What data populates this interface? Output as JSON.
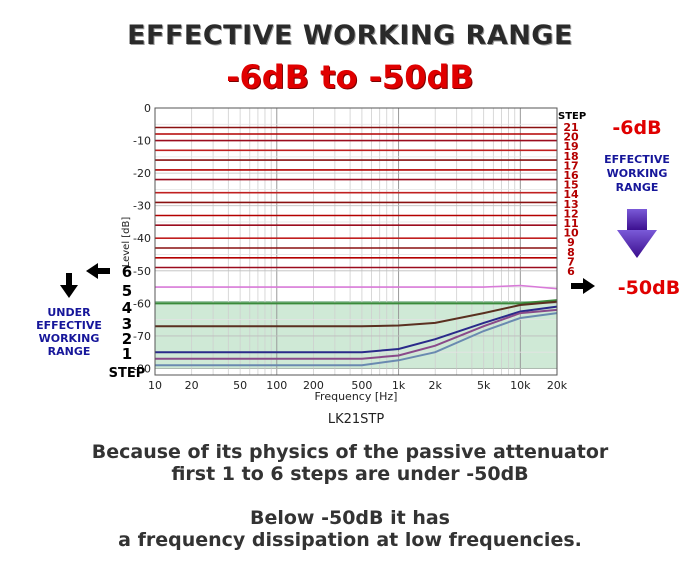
{
  "header": {
    "title": "EFFECTIVE WORKING RANGE",
    "subtitle": "-6dB to -50dB"
  },
  "annotations": {
    "right_top": "-6dB",
    "right_bottom": "-50dB",
    "effective_label": [
      "EFFECTIVE",
      "WORKING",
      "RANGE"
    ],
    "under_label": [
      "UNDER",
      "EFFECTIVE",
      "WORKING",
      "RANGE"
    ],
    "step_heading_top": "STEP",
    "step_heading_bottom": "STEP"
  },
  "colors": {
    "effective_steps": "#b40000",
    "effective_arrow": "#3a0c8c",
    "under_label": "#16169a",
    "red_text": "#e00000",
    "green_fill": "#cfe9d6"
  },
  "caption": {
    "line1": "Because of its physics of the passive attenuator",
    "line2": "first 1 to 6 steps are under -50dB",
    "line3": "Below -50dB it has",
    "line4": "a frequency dissipation at low frequencies."
  },
  "chart_data": {
    "type": "line",
    "title": "LK21STP",
    "xlabel": "Frequency [Hz]",
    "ylabel": "Level [dB]",
    "xscale": "log",
    "xlim": [
      10,
      20000
    ],
    "ylim": [
      -82,
      0
    ],
    "x_ticks": [
      10,
      20,
      50,
      100,
      200,
      500,
      1000,
      2000,
      5000,
      10000,
      20000
    ],
    "x_tick_labels": [
      "10",
      "20",
      "50",
      "100",
      "200",
      "500",
      "1k",
      "2k",
      "5k",
      "10k",
      "20k"
    ],
    "y_ticks": [
      0,
      -10,
      -20,
      -30,
      -40,
      -50,
      -60,
      -70,
      -80
    ],
    "y_tick_labels": [
      "0",
      "-10",
      "-20",
      "-30",
      "-40",
      "-50",
      "-60",
      "-70",
      "-80"
    ],
    "grid": true,
    "x": [
      10,
      20,
      50,
      100,
      200,
      500,
      1000,
      2000,
      5000,
      10000,
      20000
    ],
    "series": [
      {
        "name": "21",
        "values": [
          -6,
          -6,
          -6,
          -6,
          -6,
          -6,
          -6,
          -6,
          -6,
          -6,
          -6
        ]
      },
      {
        "name": "20",
        "values": [
          -8,
          -8,
          -8,
          -8,
          -8,
          -8,
          -8,
          -8,
          -8,
          -8,
          -8
        ]
      },
      {
        "name": "19",
        "values": [
          -10,
          -10,
          -10,
          -10,
          -10,
          -10,
          -10,
          -10,
          -10,
          -10,
          -10
        ]
      },
      {
        "name": "18",
        "values": [
          -13,
          -13,
          -13,
          -13,
          -13,
          -13,
          -13,
          -13,
          -13,
          -13,
          -13
        ]
      },
      {
        "name": "17",
        "values": [
          -16,
          -16,
          -16,
          -16,
          -16,
          -16,
          -16,
          -16,
          -16,
          -16,
          -16
        ]
      },
      {
        "name": "16",
        "values": [
          -19,
          -19,
          -19,
          -19,
          -19,
          -19,
          -19,
          -19,
          -19,
          -19,
          -19
        ]
      },
      {
        "name": "15",
        "values": [
          -22,
          -22,
          -22,
          -22,
          -22,
          -22,
          -22,
          -22,
          -22,
          -22,
          -22
        ]
      },
      {
        "name": "14",
        "values": [
          -26,
          -26,
          -26,
          -26,
          -26,
          -26,
          -26,
          -26,
          -26,
          -26,
          -26
        ]
      },
      {
        "name": "13",
        "values": [
          -29,
          -29,
          -29,
          -29,
          -29,
          -29,
          -29,
          -29,
          -29,
          -29,
          -29
        ]
      },
      {
        "name": "12",
        "values": [
          -33,
          -33,
          -33,
          -33,
          -33,
          -33,
          -33,
          -33,
          -33,
          -33,
          -33
        ]
      },
      {
        "name": "11",
        "values": [
          -36,
          -36,
          -36,
          -36,
          -36,
          -36,
          -36,
          -36,
          -36,
          -36,
          -36
        ]
      },
      {
        "name": "10",
        "values": [
          -40,
          -40,
          -40,
          -40,
          -40,
          -40,
          -40,
          -40,
          -40,
          -40,
          -40
        ]
      },
      {
        "name": "9",
        "values": [
          -43,
          -43,
          -43,
          -43,
          -43,
          -43,
          -43,
          -43,
          -43,
          -43,
          -43
        ]
      },
      {
        "name": "8",
        "values": [
          -46,
          -46,
          -46,
          -46,
          -46,
          -46,
          -46,
          -46,
          -46,
          -46,
          -46
        ]
      },
      {
        "name": "7",
        "values": [
          -49,
          -49,
          -49,
          -49,
          -49,
          -49,
          -49,
          -49,
          -49,
          -49,
          -49
        ]
      },
      {
        "name": "6",
        "values": [
          -55,
          -55,
          -55,
          -55,
          -55,
          -55,
          -55,
          -55,
          -55,
          -54.5,
          -55.5
        ]
      },
      {
        "name": "5",
        "values": [
          -60,
          -60,
          -60,
          -60,
          -60,
          -60,
          -60,
          -60,
          -60,
          -60,
          -59
        ]
      },
      {
        "name": "4",
        "values": [
          -67,
          -67,
          -67,
          -67,
          -67,
          -67,
          -66.8,
          -66,
          -63,
          -60.5,
          -59.5
        ]
      },
      {
        "name": "3",
        "values": [
          -75,
          -75,
          -75,
          -75,
          -75,
          -75,
          -74,
          -71,
          -66,
          -62.5,
          -61
        ]
      },
      {
        "name": "2",
        "values": [
          -77,
          -77,
          -77,
          -77,
          -77,
          -77,
          -76,
          -73,
          -67,
          -63,
          -62
        ]
      },
      {
        "name": "1",
        "values": [
          -79,
          -79,
          -79,
          -79,
          -79,
          -79,
          -77.5,
          -75,
          -68.5,
          -64.5,
          -63
        ]
      }
    ]
  }
}
